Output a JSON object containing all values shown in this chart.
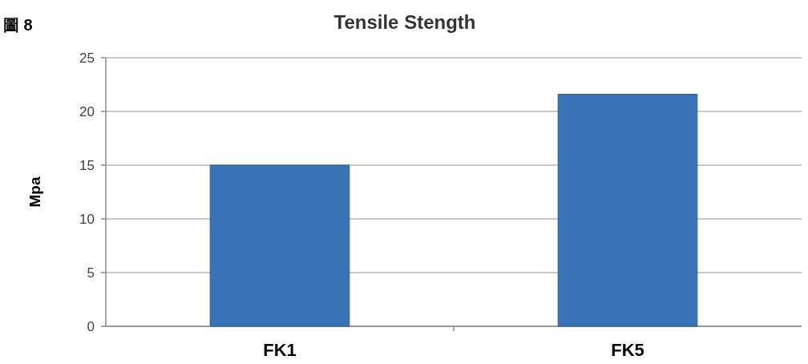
{
  "chart_data": {
    "type": "bar",
    "title": "Tensile Stength",
    "ylabel": "Mpa",
    "annotations": [
      "圖 8"
    ],
    "categories": [
      "FK1",
      "FK5"
    ],
    "values": [
      15,
      21.6
    ],
    "color": "#3b73b9",
    "ylim": [
      0,
      25
    ],
    "yticks": [
      0,
      5,
      10,
      15,
      20,
      25
    ],
    "grid": "y"
  }
}
